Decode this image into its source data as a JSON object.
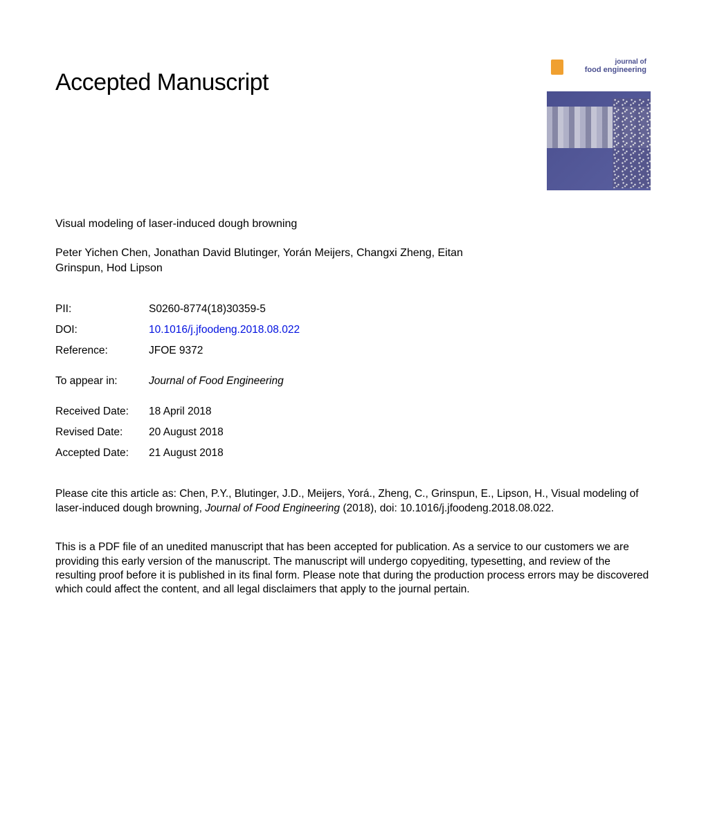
{
  "heading": "Accepted Manuscript",
  "article_title": "Visual modeling of laser-induced dough browning",
  "authors": "Peter Yichen Chen, Jonathan David Blutinger, Yorán Meijers, Changxi Zheng, Eitan Grinspun, Hod Lipson",
  "meta": {
    "pii_label": "PII:",
    "pii_value": "S0260-8774(18)30359-5",
    "doi_label": "DOI:",
    "doi_value": "10.1016/j.jfoodeng.2018.08.022",
    "ref_label": "Reference:",
    "ref_value": "JFOE 9372"
  },
  "appear": {
    "label": "To appear in:",
    "value": "Journal of Food Engineering"
  },
  "dates": {
    "received_label": "Received Date:",
    "received_value": "18 April 2018",
    "revised_label": "Revised Date:",
    "revised_value": "20 August 2018",
    "accepted_label": "Accepted Date:",
    "accepted_value": "21 August 2018"
  },
  "citation": {
    "prefix": "Please cite this article as: Chen, P.Y., Blutinger, J.D., Meijers, Yorá., Zheng, C., Grinspun, E., Lipson, H., Visual modeling of laser-induced dough browning, ",
    "journal": "Journal of Food Engineering",
    "suffix": " (2018), doi: 10.1016/j.jfoodeng.2018.08.022."
  },
  "disclaimer": "This is a PDF file of an unedited manuscript that has been accepted for publication. As a service to our customers we are providing this early version of the manuscript. The manuscript will undergo copyediting, typesetting, and review of the resulting proof before it is published in its final form. Please note that during the production process errors may be discovered which could affect the content, and all legal disclaimers that apply to the journal pertain.",
  "cover": {
    "line1": "journal of",
    "line2": "food engineering",
    "bg_color": "#4a4f8f",
    "text_color": "#4a4f8f"
  },
  "colors": {
    "link": "#0010e0",
    "text": "#000000",
    "background": "#ffffff"
  },
  "typography": {
    "heading_fontsize": 34,
    "body_fontsize": 15.5,
    "font_family": "Arial, Helvetica, sans-serif"
  }
}
